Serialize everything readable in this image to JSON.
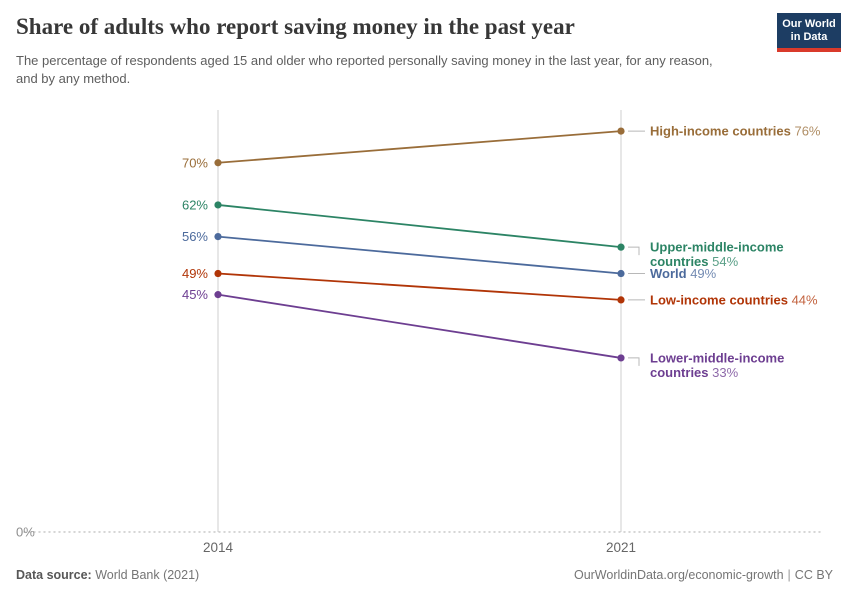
{
  "chart_data": {
    "type": "line",
    "variant": "slope",
    "title": "Share of adults who report saving money in the past year",
    "subtitle": "The percentage of respondents aged 15 and older who reported personally saving money in the last year, for any reason, and by any method.",
    "unit": "%",
    "x": [
      "2014",
      "2021"
    ],
    "ylim": [
      0,
      80
    ],
    "y_baseline_label": "0%",
    "grid": "baseline-dotted-only",
    "legend_position": "inline-right-labels",
    "series": [
      {
        "name": "High-income countries",
        "label_lines": [
          "High-income countries"
        ],
        "color": "#996D39",
        "values": [
          70,
          76
        ]
      },
      {
        "name": "Upper-middle-income countries",
        "label_lines": [
          "Upper-middle-income",
          "countries"
        ],
        "color": "#2C8465",
        "values": [
          62,
          54
        ]
      },
      {
        "name": "World",
        "label_lines": [
          "World"
        ],
        "color": "#4C6A9C",
        "values": [
          56,
          49
        ]
      },
      {
        "name": "Low-income countries",
        "label_lines": [
          "Low-income countries"
        ],
        "color": "#B13507",
        "values": [
          49,
          44
        ]
      },
      {
        "name": "Lower-middle-income countries",
        "label_lines": [
          "Lower-middle-income",
          "countries"
        ],
        "color": "#6D3E91",
        "values": [
          45,
          33
        ]
      }
    ],
    "axis_color": "#cfcfcf",
    "baseline_color": "#c8c8c8",
    "tick_label_color": "#666666",
    "baseline_label_color": "#8e8e8e",
    "connector_color": "#b8b8b8"
  },
  "logo": {
    "line1": "Our World",
    "line2": "in Data",
    "bg_color": "#1d3d63",
    "accent_color": "#d93a2b"
  },
  "footer": {
    "source_label": "Data source:",
    "source_value": "World Bank (2021)",
    "credit_url": "OurWorldinData.org/economic-growth",
    "separator": "|",
    "license": "CC BY"
  }
}
